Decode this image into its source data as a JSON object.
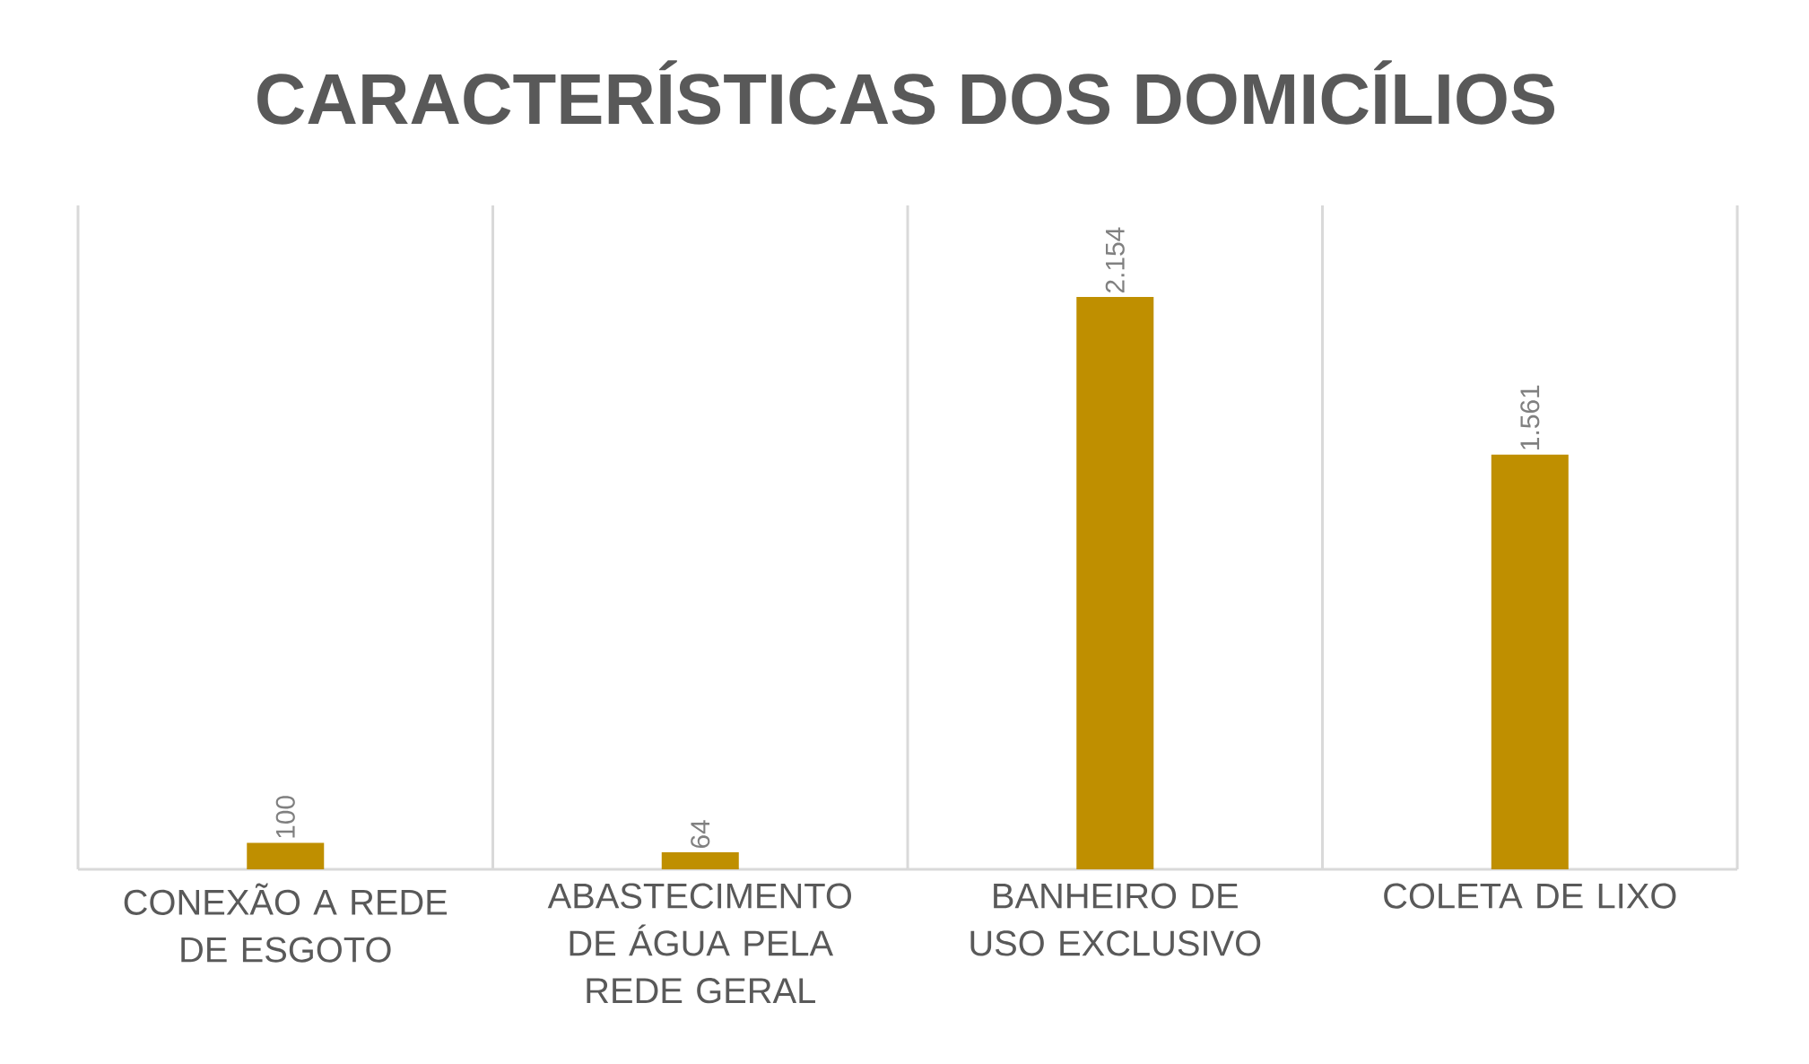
{
  "chart_data": {
    "type": "bar",
    "title": "CARACTERÍSTICAS DOS DOMICÍLIOS",
    "categories": [
      "CONEXÃO A REDE DE ESGOTO",
      "ABASTECIMENTO DE ÁGUA PELA REDE GERAL",
      "BANHEIRO DE USO EXCLUSIVO",
      "COLETA DE LIXO"
    ],
    "values": [
      100,
      64,
      2154,
      1561
    ],
    "value_labels": [
      "100",
      "64",
      "2.154",
      "1.561"
    ],
    "color": "#bf8f00",
    "grid": "x"
  }
}
